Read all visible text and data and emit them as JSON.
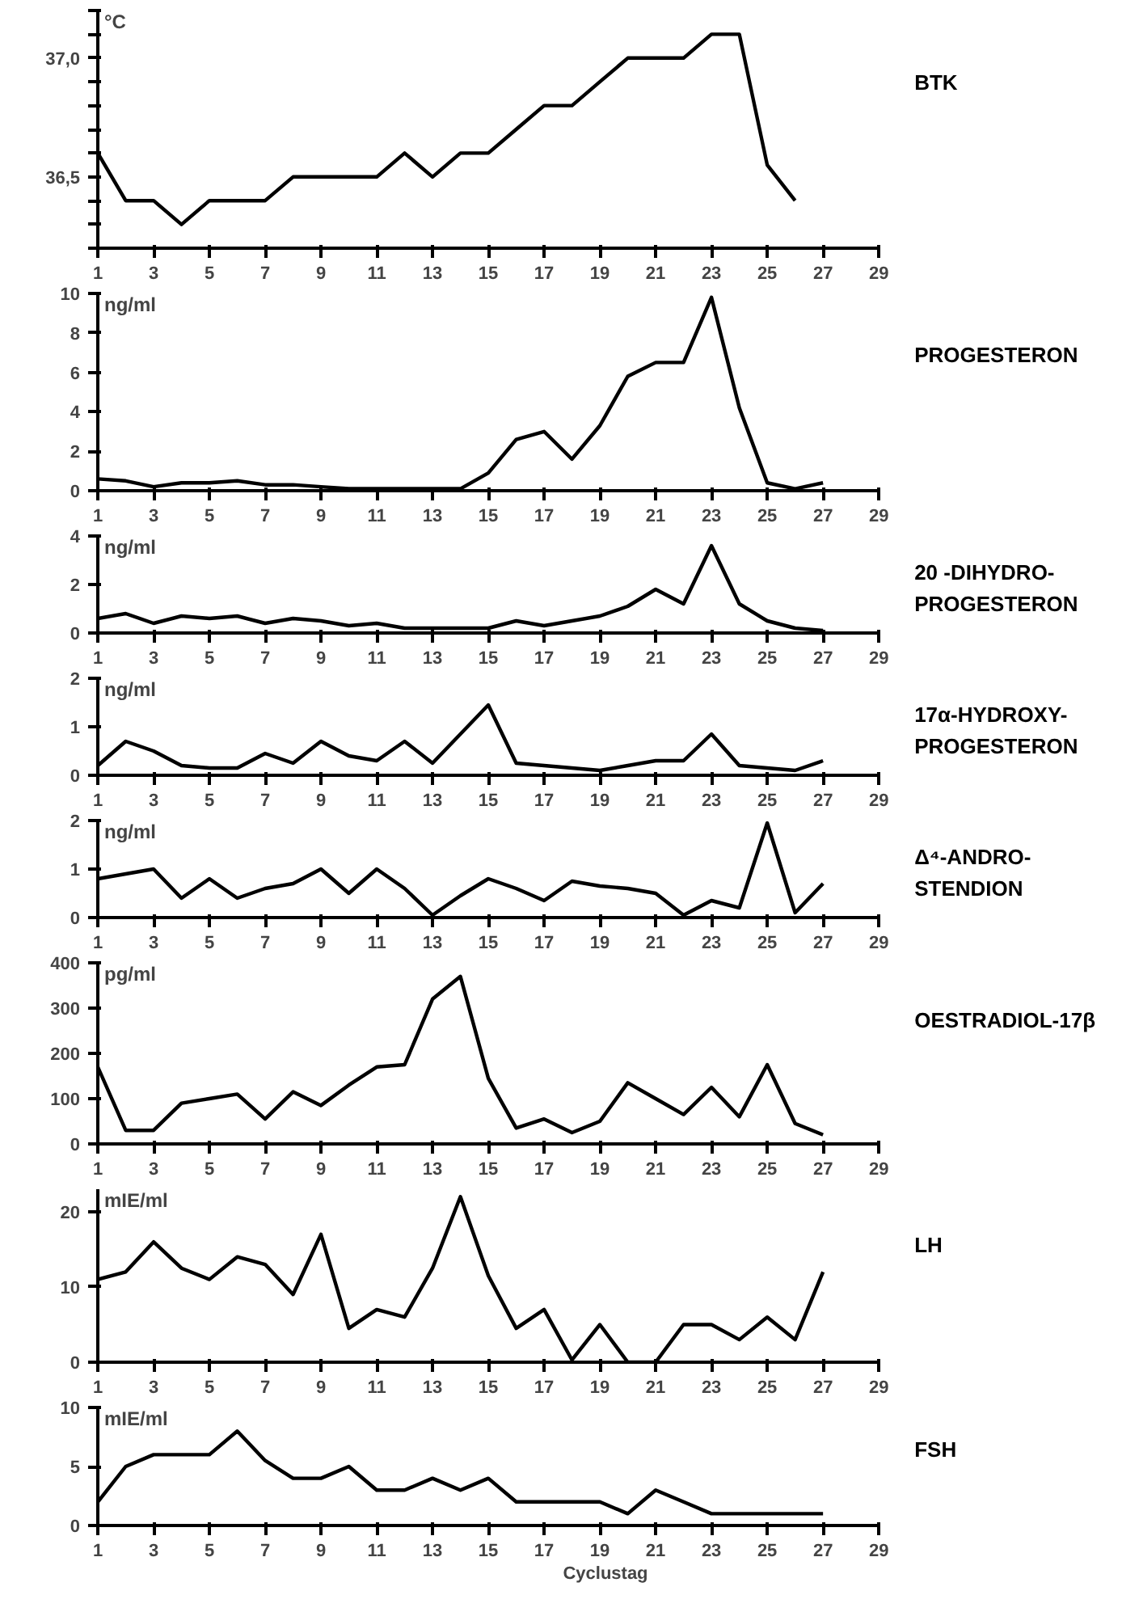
{
  "chart_data": [
    {
      "type": "line",
      "ylabel": "°C",
      "grid": false,
      "marker": "none",
      "line_style": "solid",
      "x": [
        1,
        2,
        3,
        4,
        5,
        6,
        7,
        8,
        9,
        10,
        11,
        12,
        13,
        14,
        15,
        16,
        17,
        18,
        19,
        20,
        21,
        22,
        23,
        24,
        25,
        26
      ],
      "series": [
        {
          "name": "BTK",
          "color": "#000000",
          "values": [
            36.6,
            36.4,
            36.4,
            36.3,
            36.4,
            36.4,
            36.4,
            36.5,
            36.5,
            36.5,
            36.5,
            36.6,
            36.5,
            36.6,
            36.6,
            36.7,
            36.8,
            36.8,
            36.9,
            37.0,
            37.0,
            37.0,
            37.1,
            37.1,
            36.55,
            36.4
          ]
        }
      ],
      "xlim": [
        1,
        29
      ],
      "xticks": [
        1,
        3,
        5,
        7,
        9,
        11,
        13,
        15,
        17,
        19,
        21,
        23,
        25,
        27,
        29
      ],
      "ylim": [
        36.2,
        37.2
      ],
      "yticks": [
        {
          "value": 36.2,
          "label": null
        },
        {
          "value": 36.3,
          "label": null
        },
        {
          "value": 36.4,
          "label": null
        },
        {
          "value": 36.5,
          "label": "36,5"
        },
        {
          "value": 36.6,
          "label": null
        },
        {
          "value": 36.7,
          "label": null
        },
        {
          "value": 36.8,
          "label": null
        },
        {
          "value": 36.9,
          "label": null
        },
        {
          "value": 37.0,
          "label": "37,0"
        },
        {
          "value": 37.1,
          "label": null
        },
        {
          "value": 37.2,
          "label": null
        }
      ]
    },
    {
      "type": "line",
      "ylabel": "ng/ml",
      "grid": false,
      "marker": "none",
      "line_style": "solid",
      "x": [
        1,
        2,
        3,
        4,
        5,
        6,
        7,
        8,
        9,
        10,
        11,
        12,
        13,
        14,
        15,
        16,
        17,
        18,
        19,
        20,
        21,
        22,
        23,
        24,
        25,
        26,
        27
      ],
      "series": [
        {
          "name": "PROGESTERON",
          "color": "#000000",
          "values": [
            0.6,
            0.5,
            0.2,
            0.4,
            0.4,
            0.5,
            0.3,
            0.3,
            0.2,
            0.1,
            0.1,
            0.1,
            0.1,
            0.1,
            0.9,
            2.6,
            3.0,
            1.6,
            3.3,
            5.8,
            6.5,
            6.5,
            9.8,
            4.2,
            0.4,
            0.1,
            0.4
          ]
        }
      ],
      "xlim": [
        1,
        29
      ],
      "xticks": [
        1,
        3,
        5,
        7,
        9,
        11,
        13,
        15,
        17,
        19,
        21,
        23,
        25,
        27,
        29
      ],
      "ylim": [
        0,
        10
      ],
      "yticks": [
        0,
        2,
        4,
        6,
        8,
        10
      ]
    },
    {
      "type": "line",
      "ylabel": "ng/ml",
      "grid": false,
      "marker": "none",
      "line_style": "solid",
      "x": [
        1,
        2,
        3,
        4,
        5,
        6,
        7,
        8,
        9,
        10,
        11,
        12,
        13,
        14,
        15,
        16,
        17,
        18,
        19,
        20,
        21,
        22,
        23,
        24,
        25,
        26,
        27
      ],
      "series": [
        {
          "name": "20 -DIHYDRO-\nPROGESTERON",
          "color": "#000000",
          "values": [
            0.6,
            0.8,
            0.4,
            0.7,
            0.6,
            0.7,
            0.4,
            0.6,
            0.5,
            0.3,
            0.4,
            0.2,
            0.2,
            0.2,
            0.2,
            0.5,
            0.3,
            0.5,
            0.7,
            1.1,
            1.8,
            1.2,
            3.6,
            1.2,
            0.5,
            0.2,
            0.1
          ]
        }
      ],
      "xlim": [
        1,
        29
      ],
      "xticks": [
        1,
        3,
        5,
        7,
        9,
        11,
        13,
        15,
        17,
        19,
        21,
        23,
        25,
        27,
        29
      ],
      "ylim": [
        0,
        4
      ],
      "yticks": [
        0,
        2,
        4
      ]
    },
    {
      "type": "line",
      "ylabel": "ng/ml",
      "grid": false,
      "marker": "none",
      "line_style": "solid",
      "x": [
        1,
        2,
        3,
        4,
        5,
        6,
        7,
        8,
        9,
        10,
        11,
        12,
        13,
        14,
        15,
        16,
        17,
        18,
        19,
        20,
        21,
        22,
        23,
        24,
        25,
        26,
        27
      ],
      "series": [
        {
          "name": "17α-HYDROXY-\nPROGESTERON",
          "color": "#000000",
          "values": [
            0.2,
            0.7,
            0.5,
            0.2,
            0.15,
            0.15,
            0.45,
            0.25,
            0.7,
            0.4,
            0.3,
            0.7,
            0.25,
            0.85,
            1.45,
            0.25,
            0.2,
            0.15,
            0.1,
            0.2,
            0.3,
            0.3,
            0.85,
            0.2,
            0.15,
            0.1,
            0.3
          ]
        }
      ],
      "xlim": [
        1,
        29
      ],
      "xticks": [
        1,
        3,
        5,
        7,
        9,
        11,
        13,
        15,
        17,
        19,
        21,
        23,
        25,
        27,
        29
      ],
      "ylim": [
        0,
        2
      ],
      "yticks": [
        0,
        1,
        2
      ]
    },
    {
      "type": "line",
      "ylabel": "ng/ml",
      "grid": false,
      "marker": "none",
      "line_style": "solid",
      "x": [
        1,
        2,
        3,
        4,
        5,
        6,
        7,
        8,
        9,
        10,
        11,
        12,
        13,
        14,
        15,
        16,
        17,
        18,
        19,
        20,
        21,
        22,
        23,
        24,
        25,
        26,
        27
      ],
      "series": [
        {
          "name": "Δ⁴-ANDRO-\nSTENDION",
          "color": "#000000",
          "values": [
            0.8,
            0.9,
            1.0,
            0.4,
            0.8,
            0.4,
            0.6,
            0.7,
            1.0,
            0.5,
            1.0,
            0.6,
            0.05,
            0.45,
            0.8,
            0.6,
            0.35,
            0.75,
            0.65,
            0.6,
            0.5,
            0.05,
            0.35,
            0.2,
            1.95,
            0.1,
            0.7
          ]
        }
      ],
      "xlim": [
        1,
        29
      ],
      "xticks": [
        1,
        3,
        5,
        7,
        9,
        11,
        13,
        15,
        17,
        19,
        21,
        23,
        25,
        27,
        29
      ],
      "ylim": [
        0,
        2
      ],
      "yticks": [
        0,
        1,
        2
      ]
    },
    {
      "type": "line",
      "ylabel": "pg/ml",
      "grid": false,
      "marker": "none",
      "line_style": "solid",
      "x": [
        1,
        2,
        3,
        4,
        5,
        6,
        7,
        8,
        9,
        10,
        11,
        12,
        13,
        14,
        15,
        16,
        17,
        18,
        19,
        20,
        21,
        22,
        23,
        24,
        25,
        26,
        27
      ],
      "series": [
        {
          "name": "OESTRADIOL-17β",
          "color": "#000000",
          "values": [
            170,
            30,
            30,
            90,
            100,
            110,
            55,
            115,
            85,
            130,
            170,
            175,
            320,
            370,
            145,
            35,
            55,
            25,
            50,
            135,
            100,
            65,
            125,
            60,
            175,
            45,
            20
          ]
        }
      ],
      "xlim": [
        1,
        29
      ],
      "xticks": [
        1,
        3,
        5,
        7,
        9,
        11,
        13,
        15,
        17,
        19,
        21,
        23,
        25,
        27,
        29
      ],
      "ylim": [
        0,
        400
      ],
      "yticks": [
        0,
        100,
        200,
        300,
        400
      ]
    },
    {
      "type": "line",
      "ylabel": "mIE/ml",
      "grid": false,
      "marker": "none",
      "line_style": "solid",
      "x": [
        1,
        2,
        3,
        4,
        5,
        6,
        7,
        8,
        9,
        10,
        11,
        12,
        13,
        14,
        15,
        16,
        17,
        18,
        19,
        20,
        21,
        22,
        23,
        24,
        25,
        26,
        27
      ],
      "series": [
        {
          "name": "LH",
          "color": "#000000",
          "values": [
            11,
            12,
            16,
            12.5,
            11,
            14,
            13,
            9,
            17,
            4.5,
            7,
            6,
            12.5,
            22,
            11.5,
            4.5,
            7,
            0.3,
            5,
            0,
            0,
            5,
            5,
            3,
            6,
            3,
            12
          ]
        }
      ],
      "xlim": [
        1,
        29
      ],
      "xticks": [
        1,
        3,
        5,
        7,
        9,
        11,
        13,
        15,
        17,
        19,
        21,
        23,
        25,
        27,
        29
      ],
      "ylim": [
        0,
        23
      ],
      "yticks": [
        0,
        10,
        20
      ]
    },
    {
      "type": "line",
      "ylabel": "mIE/ml",
      "xlabel": "Cyclustag",
      "grid": false,
      "marker": "none",
      "line_style": "solid",
      "x": [
        1,
        2,
        3,
        4,
        5,
        6,
        7,
        8,
        9,
        10,
        11,
        12,
        13,
        14,
        15,
        16,
        17,
        18,
        19,
        20,
        21,
        22,
        23,
        24,
        25,
        26,
        27
      ],
      "series": [
        {
          "name": "FSH",
          "color": "#000000",
          "values": [
            2,
            5,
            6,
            6,
            6,
            8,
            5.5,
            4,
            4,
            5,
            3,
            3,
            4,
            3,
            4,
            2,
            2,
            2,
            2,
            1,
            3,
            2,
            1,
            1,
            1,
            1,
            1
          ]
        }
      ],
      "xlim": [
        1,
        29
      ],
      "xticks": [
        1,
        3,
        5,
        7,
        9,
        11,
        13,
        15,
        17,
        19,
        21,
        23,
        25,
        27,
        29
      ],
      "ylim": [
        0,
        10
      ],
      "yticks": [
        0,
        5,
        10
      ]
    }
  ]
}
